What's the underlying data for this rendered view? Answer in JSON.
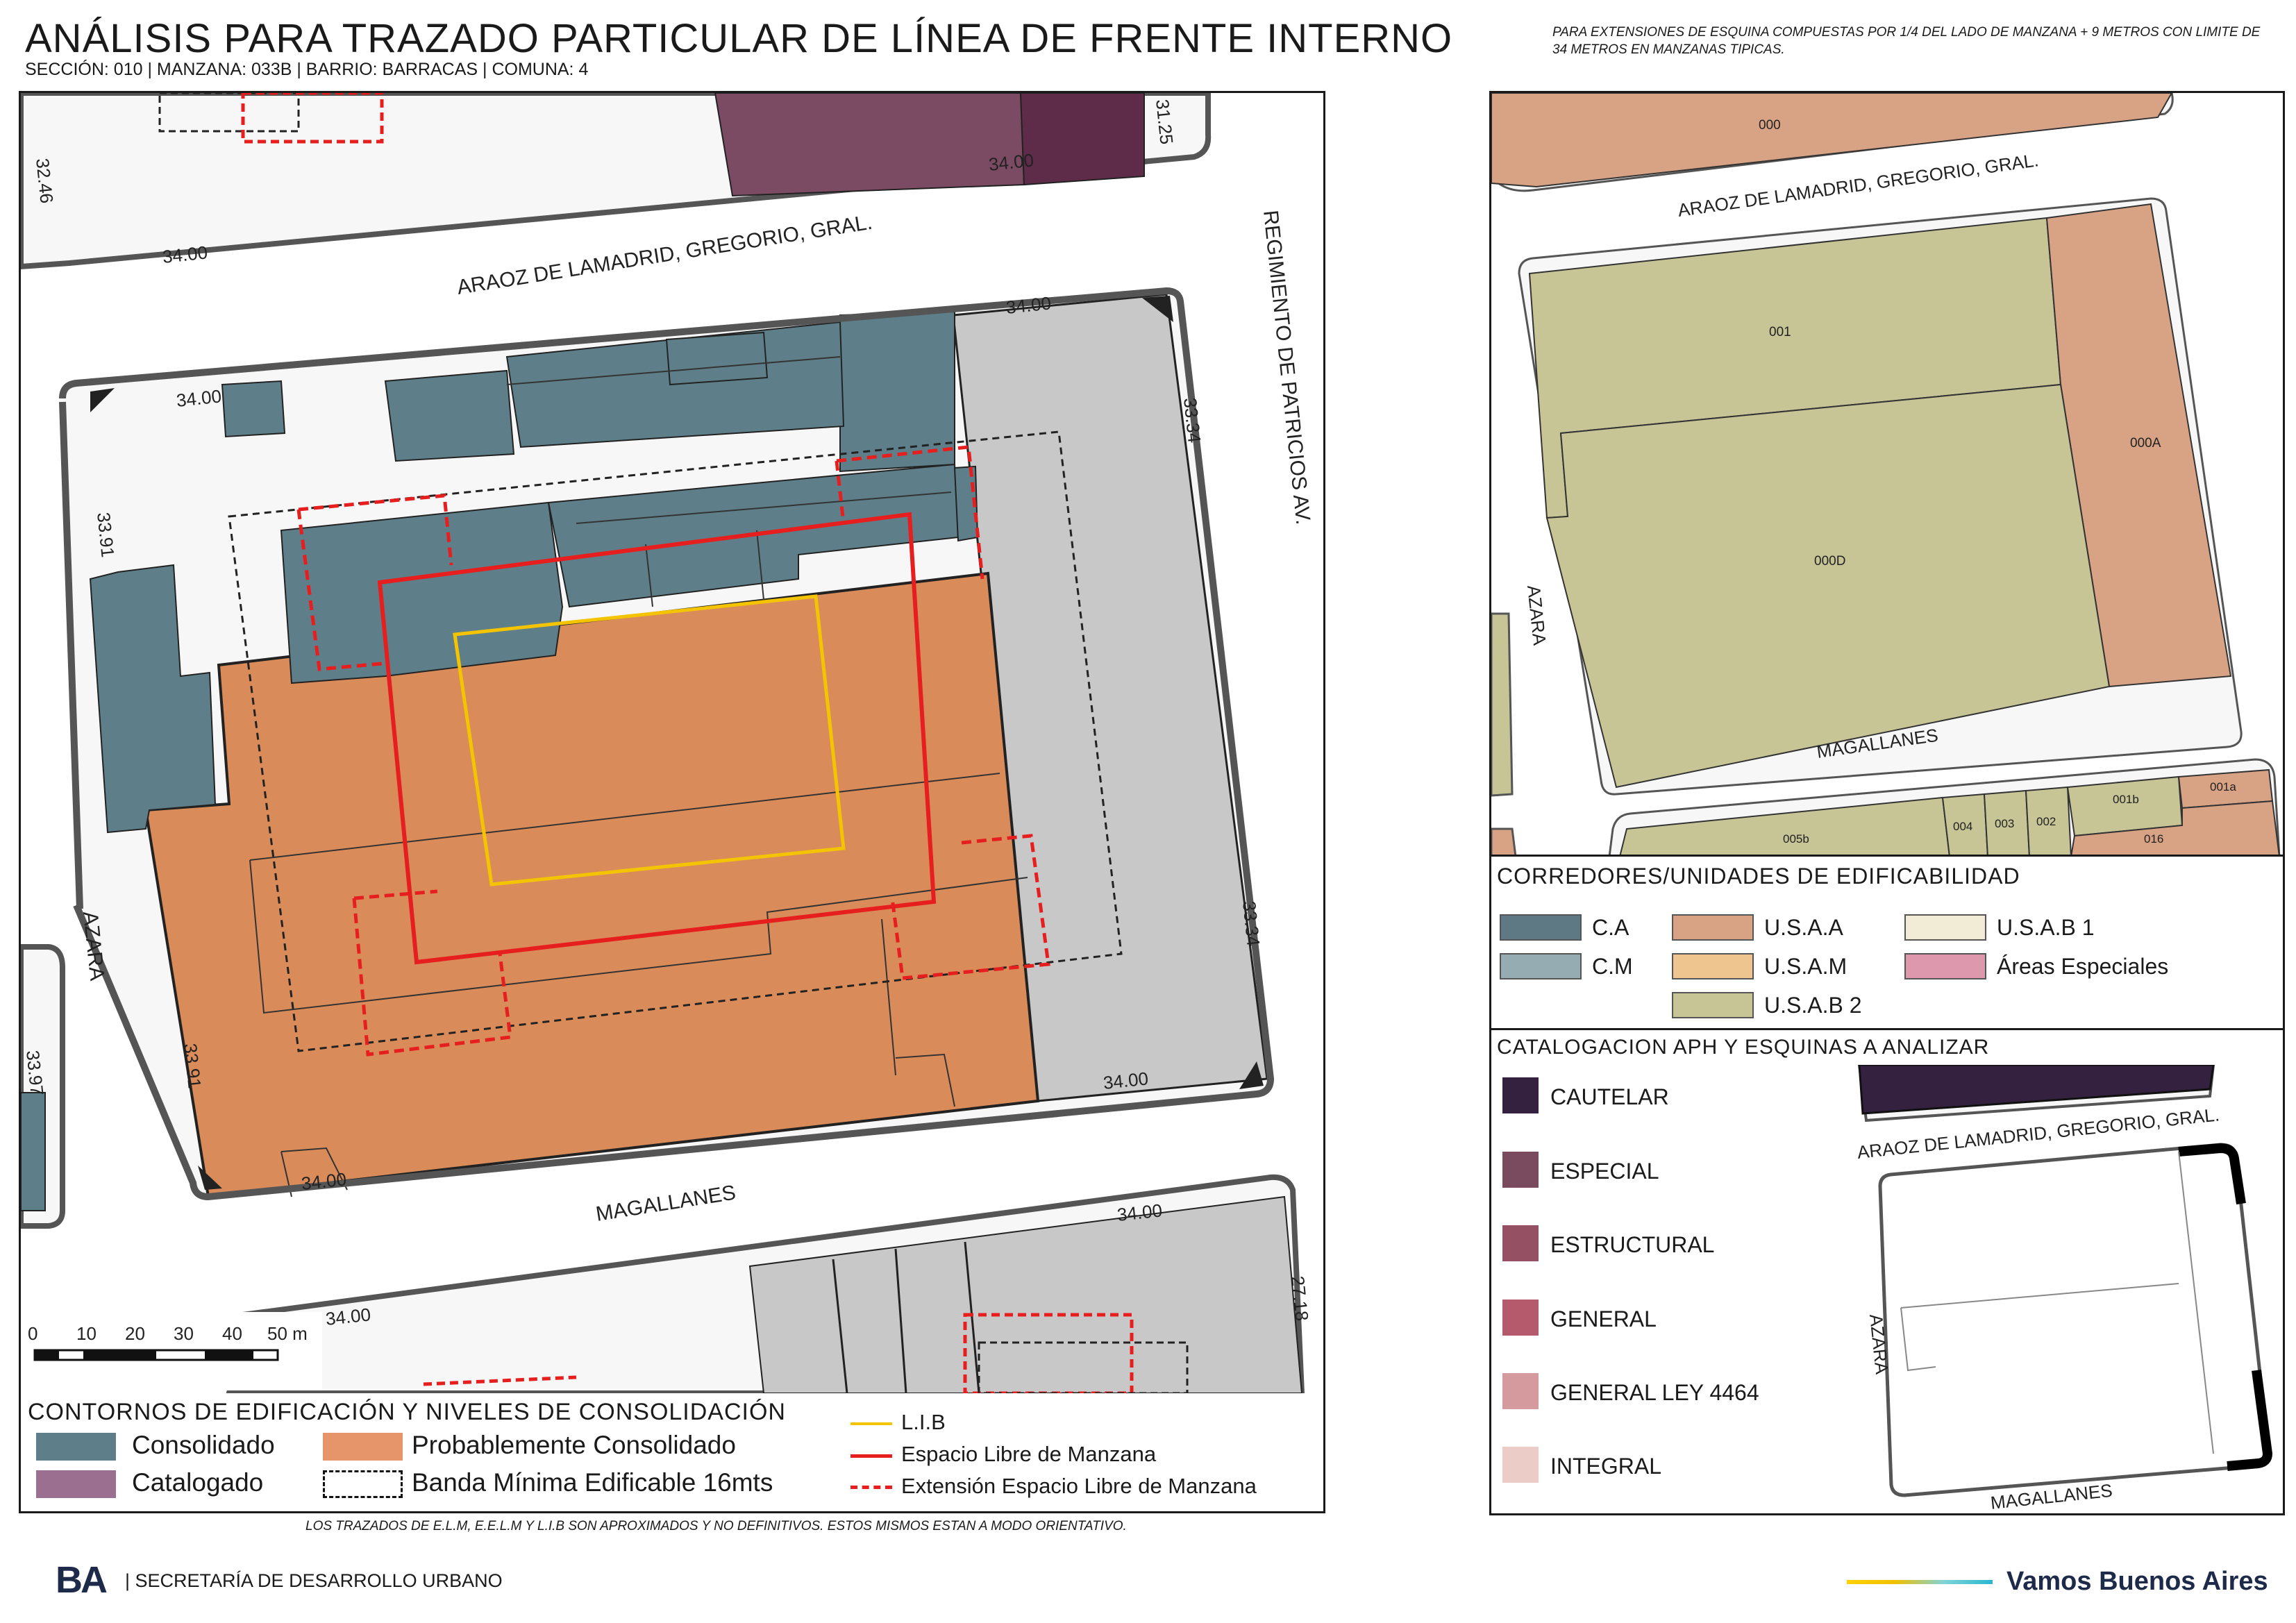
{
  "header": {
    "title": "ANÁLISIS PARA TRAZADO PARTICULAR DE LÍNEA DE FRENTE INTERNO",
    "subtitle": "SECCIÓN: 010 |  MANZANA: 033B | BARRIO: BARRACAS | COMUNA: 4",
    "corner_note": "PARA EXTENSIONES DE ESQUINA COMPUESTAS POR 1/4 DEL LADO DE MANZANA + 9 METROS CON LIMITE DE 34 METROS EN MANZANAS TIPICAS."
  },
  "main_map": {
    "streets": {
      "north": "ARAOZ DE LAMADRID, GREGORIO, GRAL.",
      "east": "REGIMIENTO DE PATRICIOS AV.",
      "west": "AZARA",
      "south": "MAGALLANES"
    },
    "dimensions": {
      "nw_top": "34.00",
      "ne_top": "34.00",
      "west_upper": "33.91",
      "west_lower": "33.91",
      "east_upper": "33.34",
      "east_lower": "33.34",
      "sw_bottom": "34.00",
      "se_bottom": "34.00",
      "north_block_left": "34.00",
      "north_block_right": "34.00",
      "north_block_west": "32.46",
      "north_block_east": "31.25",
      "south_block_left": "34.00",
      "south_block_right": "34.00",
      "south_block_east": "27.18",
      "west_block": "33.97"
    },
    "scale": {
      "ticks": [
        "0",
        "10",
        "20",
        "30",
        "40",
        "50 m"
      ]
    }
  },
  "main_legend": {
    "title": "CONTORNOS DE EDIFICACIÓN Y NIVELES DE CONSOLIDACIÓN",
    "items": [
      {
        "label": "Consolidado",
        "color": "#5e7f89"
      },
      {
        "label": "Probablemente Consolidado",
        "color": "#e6956a"
      },
      {
        "label": "Catalogado",
        "color": "#9b6f8f"
      },
      {
        "label": "Banda Mínima Edificable 16mts",
        "color": "#ffffff"
      }
    ],
    "lines": [
      {
        "label": "L.I.B",
        "color": "#f5c400"
      },
      {
        "label": "Espacio Libre de Manzana",
        "color": "#e61e1e"
      },
      {
        "label": "Extensión Espacio Libre de Manzana",
        "color": "#e61e1e"
      }
    ]
  },
  "right_map": {
    "streets": {
      "north": "ARAOZ DE LAMADRID, GREGORIO, GRAL.",
      "west": "AZARA",
      "south": "MAGALLANES"
    },
    "parcels": {
      "top": "000",
      "p001": "001",
      "p000a": "000A",
      "p000d": "000D",
      "p005b": "005b",
      "p004": "004",
      "p003": "003",
      "p002": "002",
      "p001b": "001b",
      "p001a": "001a",
      "p016": "016"
    }
  },
  "corridors_legend": {
    "title": "CORREDORES/UNIDADES DE EDIFICABILIDAD",
    "items": [
      {
        "label": "C.A",
        "color": "#5e7983"
      },
      {
        "label": "U.S.A.A",
        "color": "#d8a284"
      },
      {
        "label": "U.S.A.B 1",
        "color": "#f2ecd6"
      },
      {
        "label": "C.M",
        "color": "#95acb3"
      },
      {
        "label": "U.S.A.M",
        "color": "#eec48f"
      },
      {
        "label": "Áreas Especiales",
        "color": "#dd98ae"
      },
      {
        "label": "U.S.A.B 2",
        "color": "#c7c496"
      }
    ]
  },
  "catalog_legend": {
    "title": "CATALOGACION APH Y ESQUINAS A ANALIZAR",
    "items": [
      {
        "label": "CAUTELAR",
        "color": "#33213f"
      },
      {
        "label": "ESPECIAL",
        "color": "#7a4a5e"
      },
      {
        "label": "ESTRUCTURAL",
        "color": "#965063"
      },
      {
        "label": "GENERAL",
        "color": "#b55a6c"
      },
      {
        "label": "GENERAL LEY 4464",
        "color": "#d49a9e"
      },
      {
        "label": "INTEGRAL",
        "color": "#ebccc6"
      }
    ],
    "inset_streets": {
      "north": "ARAOZ DE LAMADRID, GREGORIO, GRAL.",
      "west": "AZARA",
      "south": "MAGALLANES"
    }
  },
  "footer": {
    "note": "LOS TRAZADOS DE E.L.M, E.E.L.M Y L.I.B SON APROXIMADOS Y NO DEFINITIVOS. ESTOS MISMOS ESTAN A MODO ORIENTATIVO.",
    "logo": "BA",
    "department": "| SECRETARÍA DE DESARROLLO URBANO",
    "slogan": "Vamos Buenos Aires"
  }
}
